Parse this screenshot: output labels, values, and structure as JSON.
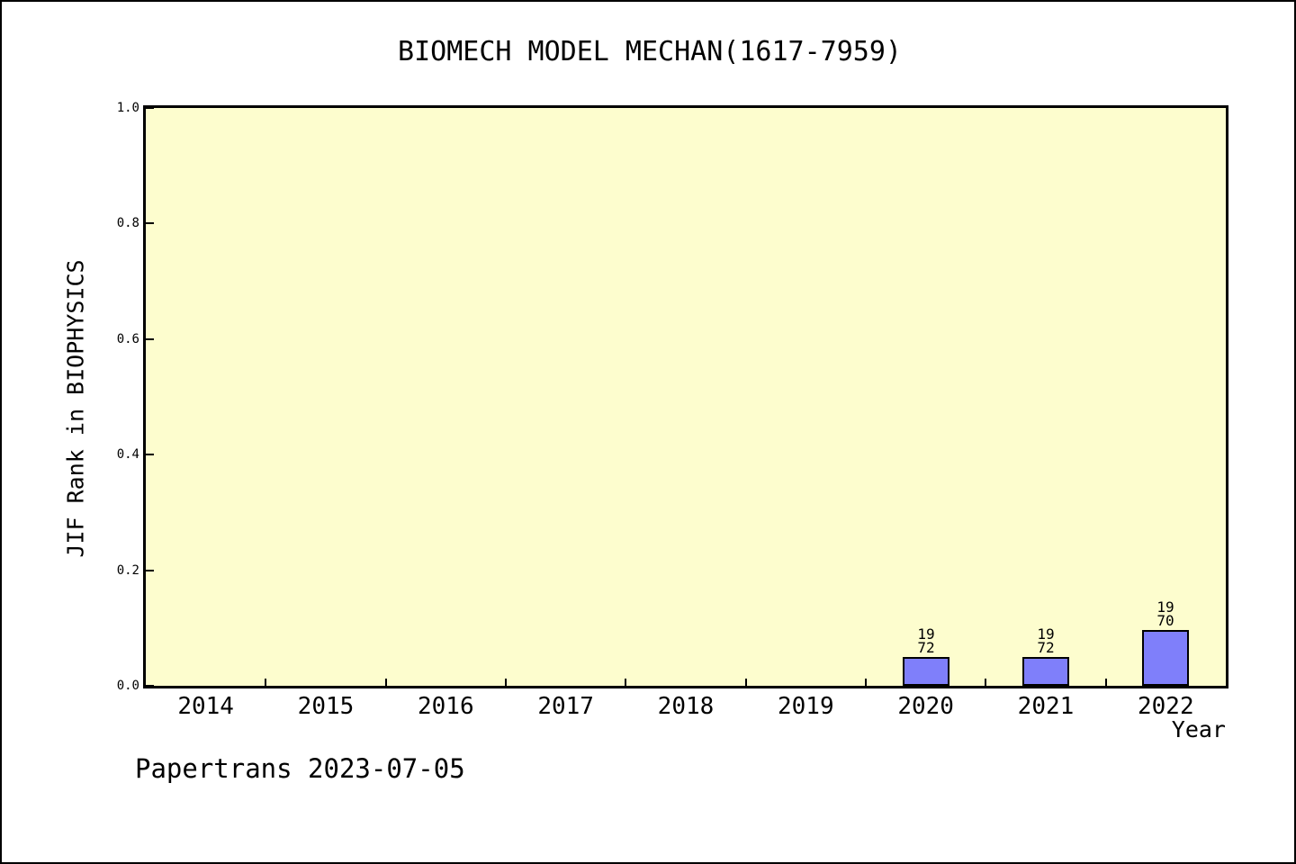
{
  "footer": {
    "text": "Papertrans 2023-07-05"
  },
  "chart_data": {
    "type": "bar",
    "title": "BIOMECH MODEL MECHAN(1617-7959)",
    "xlabel": "Year",
    "ylabel": "JIF Rank in BIOPHYSICS",
    "categories": [
      "2014",
      "2015",
      "2016",
      "2017",
      "2018",
      "2019",
      "2020",
      "2021",
      "2022"
    ],
    "y_ticks": [
      "0.0",
      "0.2",
      "0.4",
      "0.6",
      "0.8",
      "1.0"
    ],
    "ylim": [
      0,
      1
    ],
    "grid": false,
    "legend": null,
    "bars": [
      {
        "category": "2020",
        "numerator": "19",
        "denominator": "72",
        "value": 0.05
      },
      {
        "category": "2021",
        "numerator": "19",
        "denominator": "72",
        "value": 0.05
      },
      {
        "category": "2022",
        "numerator": "19",
        "denominator": "70",
        "value": 0.0966
      }
    ],
    "colors": {
      "plot_background": "#fdfdce",
      "bar_fill": "#7f7ffa",
      "bar_edge": "#000000",
      "axis": "#000000",
      "text": "#000000",
      "figure_background": "#ffffff"
    }
  }
}
